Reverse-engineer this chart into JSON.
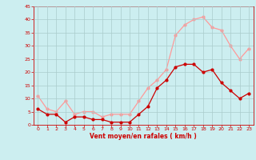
{
  "x": [
    0,
    1,
    2,
    3,
    4,
    5,
    6,
    7,
    8,
    9,
    10,
    11,
    12,
    13,
    14,
    15,
    16,
    17,
    18,
    19,
    20,
    21,
    22,
    23
  ],
  "wind_mean": [
    6,
    4,
    4,
    1,
    3,
    3,
    2,
    2,
    1,
    1,
    1,
    4,
    7,
    14,
    17,
    22,
    23,
    23,
    20,
    21,
    16,
    13,
    10,
    12
  ],
  "wind_gust": [
    11,
    6,
    5,
    9,
    4,
    5,
    5,
    3,
    4,
    4,
    4,
    9,
    14,
    17,
    21,
    34,
    38,
    40,
    41,
    37,
    36,
    30,
    25,
    29
  ],
  "xlabel": "Vent moyen/en rafales ( km/h )",
  "ylim": [
    0,
    45
  ],
  "yticks": [
    0,
    5,
    10,
    15,
    20,
    25,
    30,
    35,
    40,
    45
  ],
  "xticks": [
    0,
    1,
    2,
    3,
    4,
    5,
    6,
    7,
    8,
    9,
    10,
    11,
    12,
    13,
    14,
    15,
    16,
    17,
    18,
    19,
    20,
    21,
    22,
    23
  ],
  "bg_color": "#cceef0",
  "grid_color": "#aacccc",
  "mean_color": "#cc0000",
  "gust_color": "#ff9999",
  "xlabel_color": "#cc0000",
  "tick_color": "#cc0000",
  "marker_size": 2.0,
  "linewidth": 0.9
}
